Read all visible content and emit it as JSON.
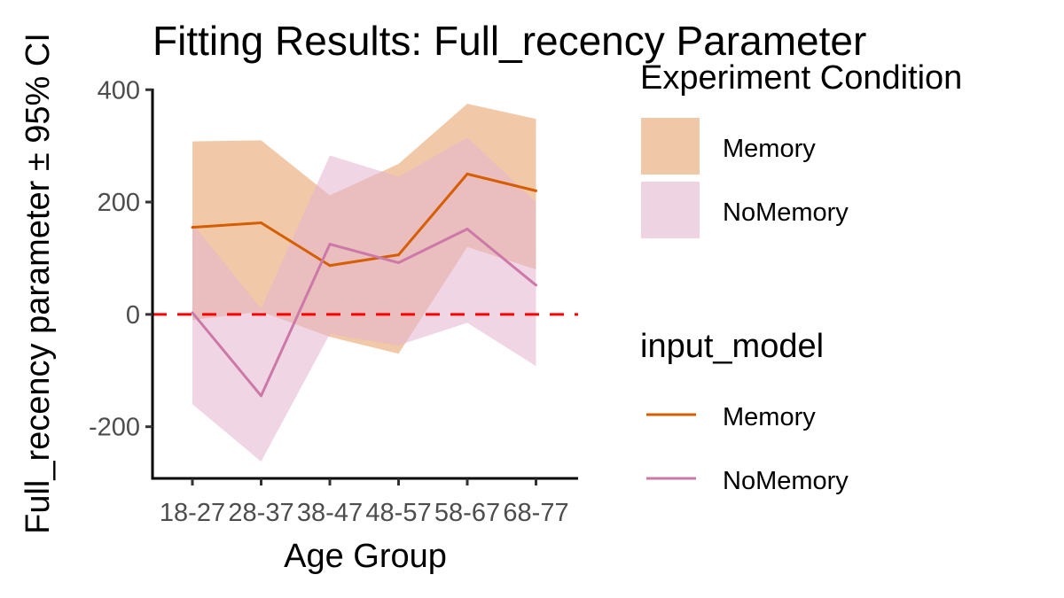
{
  "chart_data": {
    "type": "line",
    "title": "Fitting Results: Full_recency Parameter",
    "xlabel": "Age Group",
    "ylabel": "Full_recency parameter ± 95% CI",
    "categories": [
      "18-27",
      "28-37",
      "38-47",
      "48-57",
      "58-67",
      "68-77"
    ],
    "yticks": [
      -200,
      0,
      200,
      400
    ],
    "ylim": [
      -292,
      402
    ],
    "reference_line": {
      "y": 0,
      "style": "dashed",
      "color": "#ff0000"
    },
    "grid": false,
    "legend_position": "right",
    "ribbon_legend": {
      "title": "Experiment Condition",
      "entries": [
        {
          "label": "Memory",
          "color": "#f0c8a8"
        },
        {
          "label": "NoMemory",
          "color": "#eed3e2"
        }
      ]
    },
    "line_legend": {
      "title": "input_model",
      "entries": [
        {
          "label": "Memory",
          "color": "#d55e00"
        },
        {
          "label": "NoMemory",
          "color": "#cc79a7"
        }
      ]
    },
    "series": [
      {
        "name": "Memory",
        "line_color": "#d55e00",
        "ribbon_color": "#e8a56e",
        "values": [
          155,
          163,
          87,
          106,
          250,
          220
        ],
        "lower": [
          -10,
          5,
          -40,
          -70,
          120,
          80
        ],
        "upper": [
          308,
          310,
          212,
          268,
          375,
          348
        ]
      },
      {
        "name": "NoMemory",
        "line_color": "#cc79a7",
        "ribbon_color": "#e3b3cf",
        "values": [
          3,
          -145,
          125,
          92,
          152,
          52
        ],
        "lower": [
          -160,
          -262,
          -35,
          -55,
          -15,
          -92
        ],
        "upper": [
          162,
          10,
          283,
          245,
          315,
          200
        ]
      }
    ]
  }
}
